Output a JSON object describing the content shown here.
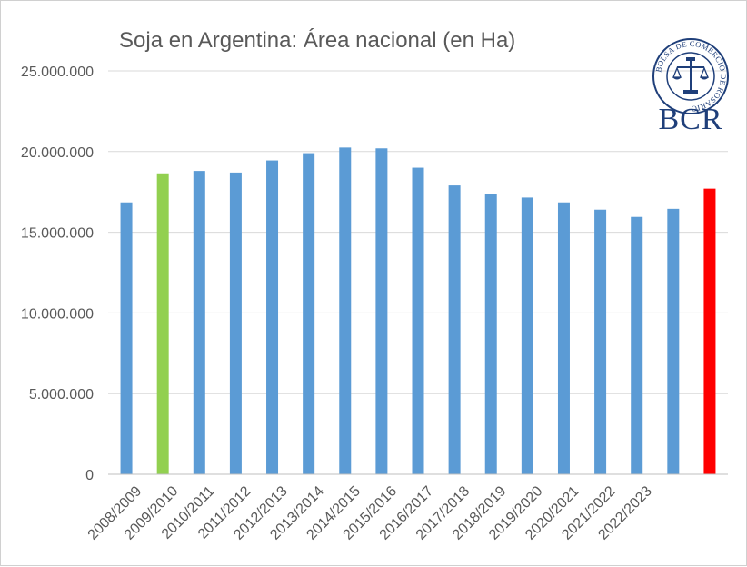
{
  "chart_data": {
    "type": "bar",
    "title": "Soja en Argentina: Área nacional (en Ha)",
    "xlabel": "",
    "ylabel": "",
    "ylim": [
      0,
      25000000
    ],
    "y_ticks": [
      0,
      5000000,
      10000000,
      15000000,
      20000000,
      25000000
    ],
    "y_tick_labels": [
      "0",
      "5.000.000",
      "10.000.000",
      "15.000.000",
      "20.000.000",
      "25.000.000"
    ],
    "grid": true,
    "categories": [
      "2008/2009",
      "2009/2010",
      "2010/2011",
      "2011/2012",
      "2012/2013",
      "2013/2014",
      "2014/2015",
      "2015/2016",
      "2016/2017",
      "2017/2018",
      "2018/2019",
      "2019/2020",
      "2020/2021",
      "2021/2022",
      "2022/2023",
      "",
      ""
    ],
    "values": [
      16850000,
      18650000,
      18800000,
      18700000,
      19450000,
      19900000,
      20250000,
      20200000,
      19000000,
      17900000,
      17350000,
      17150000,
      16850000,
      16400000,
      15950000,
      16450000,
      17700000
    ],
    "bar_colors": [
      "#5b9bd5",
      "#92d050",
      "#5b9bd5",
      "#5b9bd5",
      "#5b9bd5",
      "#5b9bd5",
      "#5b9bd5",
      "#5b9bd5",
      "#5b9bd5",
      "#5b9bd5",
      "#5b9bd5",
      "#5b9bd5",
      "#5b9bd5",
      "#5b9bd5",
      "#5b9bd5",
      "#5b9bd5",
      "#ff0000"
    ]
  },
  "logo": {
    "text": "BCR",
    "seal_text": "BOLSA DE COMERCIO DE ROSARIO",
    "color": "#1f3f7a"
  },
  "colors": {
    "grid": "#d9d9d9",
    "axis": "#bfbfbf",
    "text": "#595959"
  }
}
